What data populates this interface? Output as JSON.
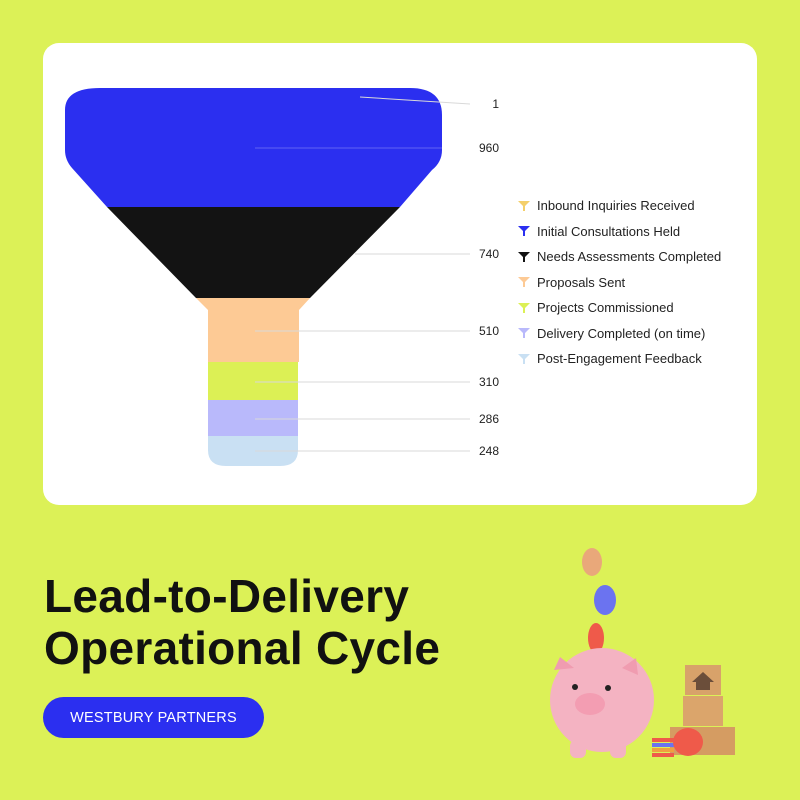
{
  "chart_data": {
    "type": "funnel",
    "stages": [
      {
        "label": "Inbound Inquiries Received",
        "value": 1,
        "color": "#f4cf6a"
      },
      {
        "label": "Initial Consultations Held",
        "value": 960,
        "color": "#2b2ff0"
      },
      {
        "label": "Needs Assessments Completed",
        "value": 740,
        "color": "#131313"
      },
      {
        "label": "Proposals Sent",
        "value": 510,
        "color": "#fdca95"
      },
      {
        "label": "Projects Commissioned",
        "value": 310,
        "color": "#dcf055"
      },
      {
        "label": "Delivery Completed (on time)",
        "value": 286,
        "color": "#b9b9fb"
      },
      {
        "label": "Post-Engagement Feedback",
        "value": 248,
        "color": "#c9e0f3"
      }
    ],
    "legend_position": "right"
  },
  "title": {
    "line1": "Lead-to-Delivery",
    "line2": "Operational Cycle"
  },
  "brand": {
    "label": "WESTBURY PARTNERS",
    "color": "#2b2ff0"
  },
  "background_color": "#dcf157",
  "illustration": {
    "name": "piggy-bank-with-coins-and-house-blocks"
  }
}
